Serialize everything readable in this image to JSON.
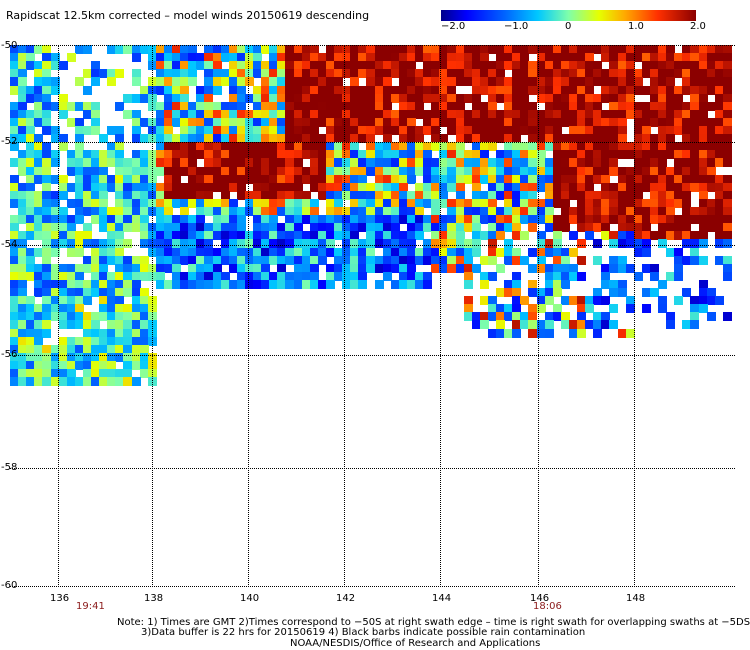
{
  "title": "Rapidscat 12.5km corrected – model winds 20150619 descending",
  "colorbar": {
    "labels": [
      "−2.0",
      "−1.0",
      "0",
      "1.0",
      "2.0"
    ],
    "range": [
      -2.0,
      2.0
    ]
  },
  "chart_data": {
    "type": "heatmap",
    "title": "Rapidscat 12.5km corrected – model winds 20150619 descending",
    "xlabel": "",
    "ylabel": "",
    "xlim": [
      135,
      150
    ],
    "ylim": [
      -60,
      -50
    ],
    "x_ticks": [
      "136",
      "138",
      "140",
      "142",
      "144",
      "146",
      "148"
    ],
    "y_ticks": [
      "-50",
      "-52",
      "-54",
      "-56",
      "-58",
      "-60"
    ],
    "value_range": [
      -2.0,
      2.0
    ],
    "grid": true
  },
  "time_labels": [
    "19:41",
    "18:06"
  ],
  "notes": [
    "Note: 1) Times are GMT 2)Times correspond to −50S at right swath edge – time is right swath for overlapping swaths at −5DS",
    "3)Data buffer is 22 hrs for 20150619 4) Black barbs indicate possible rain contamination",
    "NOAA/NESDIS/Office of Research and Applications"
  ]
}
